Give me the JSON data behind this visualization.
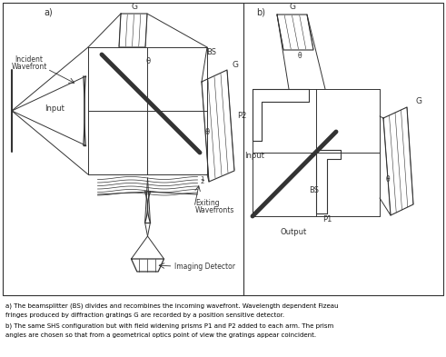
{
  "bg_color": "#ffffff",
  "line_color": "#333333",
  "caption_line1": "a) The beamsplitter (BS) divides and recombines the incoming wavefront. Wavelength dependent Fizeau",
  "caption_line2": "fringes produced by diffraction gratings G are recorded by a position sensitive detector.",
  "caption_line3": "b) The same SHS configuration but with field widening prisms P1 and P2 added to each arm. The prism",
  "caption_line4": "angles are chosen so that from a geometrical optics point of view the gratings appear coincident."
}
